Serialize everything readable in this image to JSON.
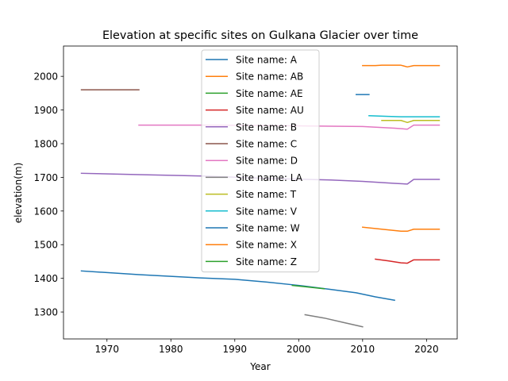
{
  "chart_data": {
    "type": "line",
    "title": "Elevation at specific sites on Gulkana Glacier over time",
    "xlabel": "Year",
    "ylabel": "elevation(m)",
    "xlim": [
      1963.2,
      2024.8
    ],
    "ylim": [
      1220,
      2090
    ],
    "xticks": [
      1970,
      1980,
      1990,
      2000,
      2010,
      2020
    ],
    "yticks": [
      1300,
      1400,
      1500,
      1600,
      1700,
      1800,
      1900,
      2000
    ],
    "grid": false,
    "legend_position": "top-center",
    "series": [
      {
        "name": "Site name: A",
        "color": "#1f77b4",
        "x": [
          1966,
          1975,
          1985,
          1990,
          1995,
          2000,
          2005,
          2009,
          2012,
          2015
        ],
        "y": [
          1422,
          1411,
          1401,
          1397,
          1389,
          1379,
          1367,
          1357,
          1345,
          1335
        ]
      },
      {
        "name": "Site name: AB",
        "color": "#ff7f0e",
        "x": [
          2010,
          2012,
          2013,
          2016,
          2017,
          2018,
          2022
        ],
        "y": [
          2032,
          2032,
          2033,
          2033,
          2028,
          2032,
          2032
        ]
      },
      {
        "name": "Site name: AE",
        "color": "#2ca02c",
        "x": [
          1999,
          2004
        ],
        "y": [
          1379,
          1369
        ]
      },
      {
        "name": "Site name: AU",
        "color": "#d62728",
        "x": [
          2012,
          2014,
          2015,
          2016,
          2017,
          2018,
          2022
        ],
        "y": [
          1457,
          1452,
          1449,
          1446,
          1445,
          1455,
          1455
        ]
      },
      {
        "name": "Site name: B",
        "color": "#9467bd",
        "x": [
          1966,
          1975,
          1985,
          1995,
          2005,
          2010,
          2015,
          2017,
          2018,
          2022
        ],
        "y": [
          1712,
          1708,
          1704,
          1697,
          1692,
          1688,
          1682,
          1680,
          1694,
          1694
        ]
      },
      {
        "name": "Site name: C",
        "color": "#8c564b",
        "x": [
          1966,
          1975
        ],
        "y": [
          1960,
          1960
        ]
      },
      {
        "name": "Site name: D",
        "color": "#e377c2",
        "x": [
          1975,
          1985,
          1995,
          2005,
          2010,
          2015,
          2017,
          2018,
          2022
        ],
        "y": [
          1855,
          1855,
          1854,
          1852,
          1851,
          1846,
          1843,
          1855,
          1855
        ]
      },
      {
        "name": "Site name: LA",
        "color": "#7f7f7f",
        "x": [
          2001,
          2004,
          2007,
          2010
        ],
        "y": [
          1292,
          1282,
          1269,
          1256
        ]
      },
      {
        "name": "Site name: T",
        "color": "#bcbd22",
        "x": [
          2013,
          2016,
          2017,
          2018,
          2022
        ],
        "y": [
          1869,
          1869,
          1863,
          1869,
          1869
        ]
      },
      {
        "name": "Site name: V",
        "color": "#17becf",
        "x": [
          2011,
          2014,
          2016,
          2018,
          2022
        ],
        "y": [
          1883,
          1881,
          1880,
          1880,
          1880
        ]
      },
      {
        "name": "Site name: W",
        "color": "#1f77b4",
        "x": [
          2009,
          2011
        ],
        "y": [
          1946,
          1946
        ]
      },
      {
        "name": "Site name: X",
        "color": "#ff7f0e",
        "x": [
          2010,
          2013,
          2016,
          2017,
          2018,
          2022
        ],
        "y": [
          1552,
          1546,
          1540,
          1540,
          1546,
          1546
        ]
      },
      {
        "name": "Site name: Z",
        "color": "#2ca02c",
        "x": [],
        "y": []
      }
    ]
  }
}
